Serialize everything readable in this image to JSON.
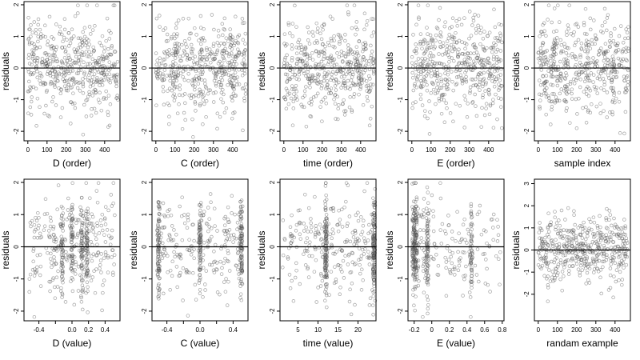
{
  "chart_data": [
    {
      "type": "scatter",
      "xlabel": "D (order)",
      "ylabel": "residuals",
      "xlim": [
        -20,
        480
      ],
      "ylim": [
        -2.3,
        2.1
      ],
      "xticks": [
        0,
        100,
        200,
        300,
        400
      ],
      "yticks": [
        -2,
        -1,
        0,
        1,
        2
      ],
      "hline": 0,
      "n": 480,
      "dist": "uniform",
      "xmin": 0,
      "xmax": 470,
      "seed": 11
    },
    {
      "type": "scatter",
      "xlabel": "C (order)",
      "ylabel": "residuals",
      "xlim": [
        -20,
        480
      ],
      "ylim": [
        -2.3,
        2.1
      ],
      "xticks": [
        0,
        100,
        200,
        300,
        400
      ],
      "yticks": [
        -2,
        -1,
        0,
        1,
        2
      ],
      "hline": 0,
      "n": 480,
      "dist": "uniform",
      "xmin": 0,
      "xmax": 470,
      "seed": 12
    },
    {
      "type": "scatter",
      "xlabel": "time (order)",
      "ylabel": "residuals",
      "xlim": [
        -20,
        480
      ],
      "ylim": [
        -2.3,
        2.1
      ],
      "xticks": [
        0,
        100,
        200,
        300,
        400
      ],
      "yticks": [
        -2,
        -1,
        0,
        1,
        2
      ],
      "hline": 0,
      "n": 480,
      "dist": "uniform",
      "xmin": 0,
      "xmax": 470,
      "seed": 13
    },
    {
      "type": "scatter",
      "xlabel": "E (order)",
      "ylabel": "residuals",
      "xlim": [
        -20,
        480
      ],
      "ylim": [
        -2.3,
        2.1
      ],
      "xticks": [
        0,
        100,
        200,
        300,
        400
      ],
      "yticks": [
        -2,
        -1,
        0,
        1,
        2
      ],
      "hline": 0,
      "n": 480,
      "dist": "uniform",
      "xmin": 0,
      "xmax": 470,
      "seed": 14
    },
    {
      "type": "scatter",
      "xlabel": "sample index",
      "ylabel": "residuals",
      "xlim": [
        -20,
        480
      ],
      "ylim": [
        -2.3,
        2.1
      ],
      "xticks": [
        0,
        100,
        200,
        300,
        400
      ],
      "yticks": [
        -2,
        -1,
        0,
        1,
        2
      ],
      "hline": 0,
      "n": 480,
      "dist": "uniform",
      "xmin": 0,
      "xmax": 470,
      "seed": 15
    },
    {
      "type": "scatter",
      "xlabel": "D (value)",
      "ylabel": "residuals",
      "xlim": [
        -0.58,
        0.58
      ],
      "ylim": [
        -2.3,
        2.1
      ],
      "xticks": [
        -0.4,
        -0.2,
        0.0,
        0.2,
        0.4
      ],
      "ticklabels": [
        "-0.4",
        "",
        "0.0",
        "0.2",
        "0.4"
      ],
      "yticks": [
        -2,
        -1,
        0,
        1,
        2
      ],
      "hline": 0,
      "n": 480,
      "dist": "uniform",
      "xmin": -0.52,
      "xmax": 0.52,
      "clusters": [
        -0.12,
        0.0,
        0.12,
        0.18
      ],
      "seed": 21
    },
    {
      "type": "scatter",
      "xlabel": "C (value)",
      "ylabel": "residuals",
      "xlim": [
        -0.58,
        0.58
      ],
      "ylim": [
        -2.3,
        2.1
      ],
      "xticks": [
        -0.4,
        -0.2,
        0.0,
        0.2,
        0.4
      ],
      "ticklabels": [
        "-0.4",
        "",
        "0.0",
        "",
        "0.4"
      ],
      "yticks": [
        -2,
        -1,
        0,
        1,
        2
      ],
      "hline": 0,
      "n": 480,
      "dist": "uniform",
      "xmin": -0.52,
      "xmax": 0.52,
      "clusters": [
        -0.5,
        0.0,
        0.5
      ],
      "seed": 22
    },
    {
      "type": "scatter",
      "xlabel": "time (value)",
      "ylabel": "residuals",
      "xlim": [
        0.5,
        24.5
      ],
      "ylim": [
        -2.3,
        2.1
      ],
      "xticks": [
        5,
        10,
        15,
        20
      ],
      "yticks": [
        -2,
        -1,
        0,
        1,
        2
      ],
      "hline": 0,
      "n": 480,
      "dist": "uniform",
      "xmin": 1,
      "xmax": 24,
      "clusters": [
        12,
        24
      ],
      "seed": 23
    },
    {
      "type": "scatter",
      "xlabel": "E (value)",
      "ylabel": "residuals",
      "xlim": [
        -0.27,
        0.82
      ],
      "ylim": [
        -2.3,
        2.1
      ],
      "xticks": [
        -0.2,
        0.0,
        0.2,
        0.4,
        0.6,
        0.8
      ],
      "yticks": [
        -2,
        -1,
        0,
        1,
        2
      ],
      "hline": 0,
      "n": 480,
      "dist": "skew",
      "xmin": -0.22,
      "xmax": 0.78,
      "clusters": [
        -0.2,
        -0.18,
        -0.05,
        0.45
      ],
      "seed": 24
    },
    {
      "type": "scatter",
      "xlabel": "randam example",
      "ylabel": "residuals",
      "xlim": [
        -20,
        480
      ],
      "ylim": [
        -3.2,
        3.2
      ],
      "xticks": [
        0,
        100,
        200,
        300,
        400
      ],
      "yticks": [
        -2,
        -1,
        0,
        1,
        2,
        3
      ],
      "hline": 0,
      "n": 480,
      "dist": "uniform",
      "xmin": 0,
      "xmax": 470,
      "seed": 25
    }
  ]
}
